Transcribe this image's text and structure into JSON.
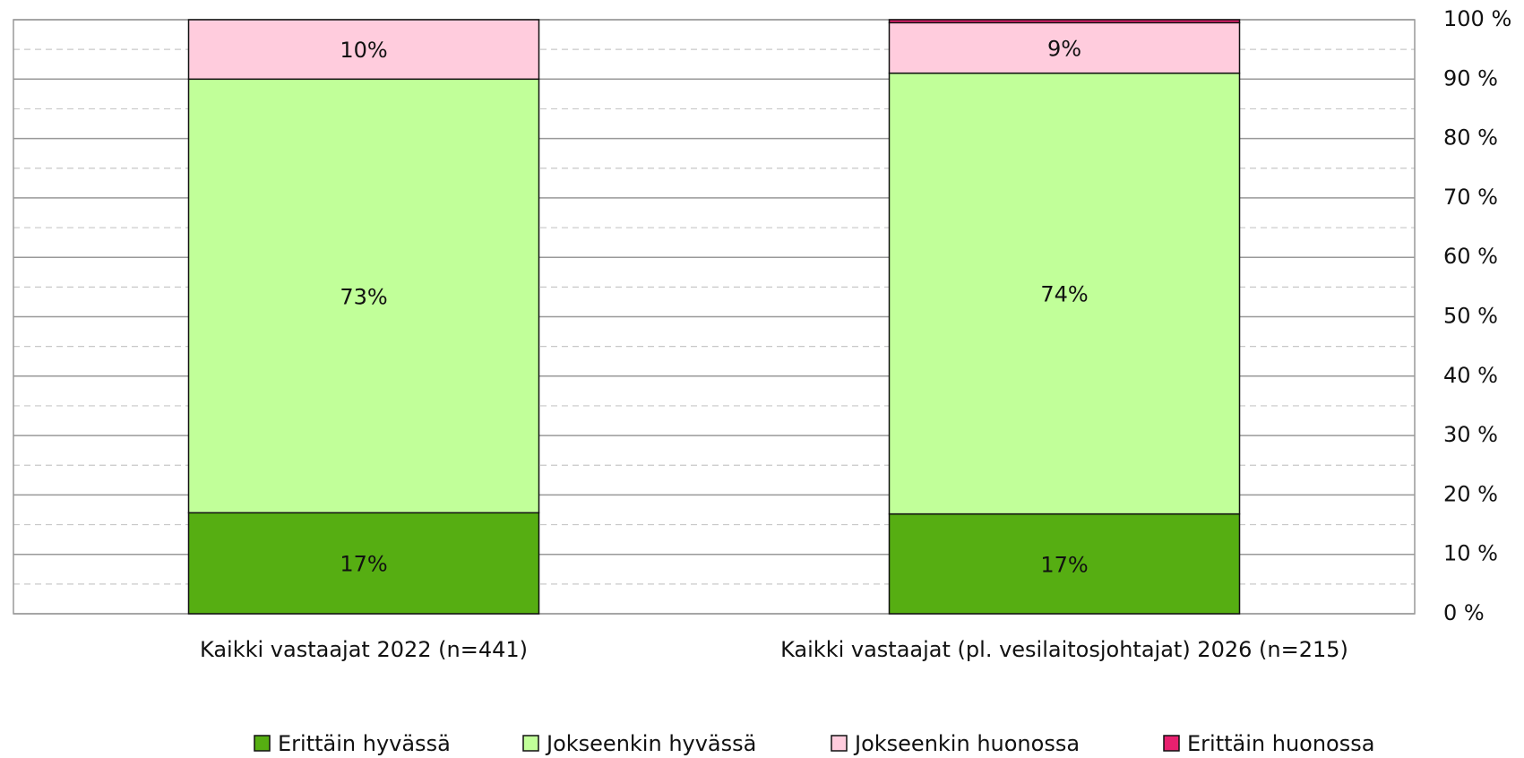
{
  "chart_data": {
    "type": "stacked_bar",
    "categories": [
      "Kaikki vastaajat 2022 (n=441)",
      "Kaikki vastaajat (pl. vesilaitosjohtajat) 2026 (n=215)"
    ],
    "series": [
      {
        "name": "Erittäin hyvässä",
        "color": "#56ae12",
        "values": [
          17,
          16.8
        ],
        "value_labels": [
          "17%",
          "17%"
        ]
      },
      {
        "name": "Jokseenkin hyvässä",
        "color": "#c1ff99",
        "values": [
          73,
          74.2
        ],
        "value_labels": [
          "73%",
          "74%"
        ]
      },
      {
        "name": "Jokseenkin huonossa",
        "color": "#ffccdd",
        "values": [
          10,
          8.5
        ],
        "value_labels": [
          "10%",
          "9%"
        ]
      },
      {
        "name": "Erittäin huonossa",
        "color": "#e8206f",
        "values": [
          0,
          0.5
        ]
      }
    ],
    "ylim": [
      0,
      100
    ],
    "yticks": [
      {
        "value": 0,
        "label": "0 %"
      },
      {
        "value": 10,
        "label": "10 %"
      },
      {
        "value": 20,
        "label": "20 %"
      },
      {
        "value": 30,
        "label": "30 %"
      },
      {
        "value": 40,
        "label": "40 %"
      },
      {
        "value": 50,
        "label": "50 %"
      },
      {
        "value": 60,
        "label": "60 %"
      },
      {
        "value": 70,
        "label": "70 %"
      },
      {
        "value": 80,
        "label": "80 %"
      },
      {
        "value": 90,
        "label": "90 %"
      },
      {
        "value": 100,
        "label": "100 %"
      }
    ],
    "y_axis_side": "right",
    "grid": true,
    "minor_grid": true,
    "legend": "bottom"
  }
}
